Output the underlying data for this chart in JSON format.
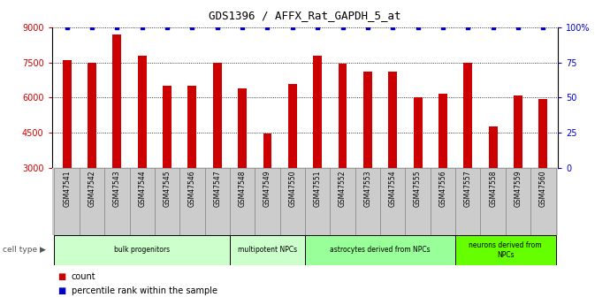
{
  "title": "GDS1396 / AFFX_Rat_GAPDH_5_at",
  "samples": [
    "GSM47541",
    "GSM47542",
    "GSM47543",
    "GSM47544",
    "GSM47545",
    "GSM47546",
    "GSM47547",
    "GSM47548",
    "GSM47549",
    "GSM47550",
    "GSM47551",
    "GSM47552",
    "GSM47553",
    "GSM47554",
    "GSM47555",
    "GSM47556",
    "GSM47557",
    "GSM47558",
    "GSM47559",
    "GSM47560"
  ],
  "counts": [
    7600,
    7500,
    8700,
    7800,
    6500,
    6500,
    7500,
    6400,
    4450,
    6600,
    7800,
    7450,
    7100,
    7100,
    6000,
    6150,
    7500,
    4750,
    6100,
    5950
  ],
  "percentiles": [
    100,
    100,
    100,
    100,
    100,
    100,
    100,
    100,
    100,
    100,
    100,
    100,
    100,
    100,
    100,
    100,
    100,
    100,
    100,
    100
  ],
  "ylim_left": [
    3000,
    9000
  ],
  "ylim_right": [
    0,
    100
  ],
  "yticks_left": [
    3000,
    4500,
    6000,
    7500,
    9000
  ],
  "yticks_right": [
    0,
    25,
    50,
    75,
    100
  ],
  "cell_types": [
    {
      "label": "bulk progenitors",
      "start": 0,
      "end": 7,
      "color": "#ccffcc"
    },
    {
      "label": "multipotent NPCs",
      "start": 7,
      "end": 10,
      "color": "#ccffcc"
    },
    {
      "label": "astrocytes derived from NPCs",
      "start": 10,
      "end": 16,
      "color": "#99ff99"
    },
    {
      "label": "neurons derived from\nNPCs",
      "start": 16,
      "end": 20,
      "color": "#66ff00"
    }
  ],
  "bar_color": "#cc0000",
  "percentile_color": "#0000cc",
  "background_color": "#ffffff",
  "tick_label_color_left": "#cc0000",
  "tick_label_color_right": "#0000cc",
  "xtick_bg_color": "#cccccc",
  "cell_type_label": "cell type",
  "legend_count": "count",
  "legend_percentile": "percentile rank within the sample"
}
